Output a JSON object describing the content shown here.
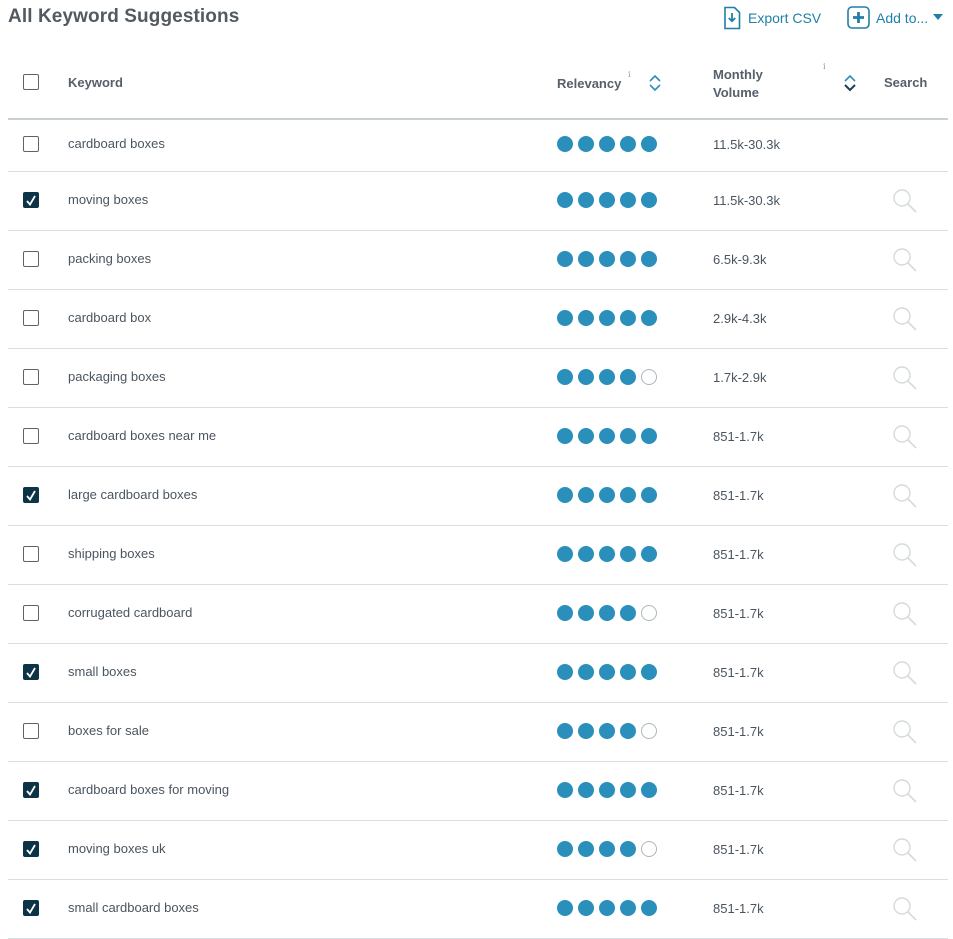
{
  "title": "All Keyword Suggestions",
  "actions": {
    "export_label": "Export CSV",
    "addto_label": "Add to..."
  },
  "columns": {
    "keyword": "Keyword",
    "relevancy": "Relevancy",
    "volume_line1": "Monthly",
    "volume_line2": "Volume",
    "search": "Search",
    "info_glyph": "i"
  },
  "rows": [
    {
      "keyword": "cardboard boxes",
      "checked": false,
      "relevancy": 5,
      "volume": "11.5k-30.3k",
      "search_icon": false
    },
    {
      "keyword": "moving boxes",
      "checked": true,
      "relevancy": 5,
      "volume": "11.5k-30.3k",
      "search_icon": true
    },
    {
      "keyword": "packing boxes",
      "checked": false,
      "relevancy": 5,
      "volume": "6.5k-9.3k",
      "search_icon": true
    },
    {
      "keyword": "cardboard box",
      "checked": false,
      "relevancy": 5,
      "volume": "2.9k-4.3k",
      "search_icon": true
    },
    {
      "keyword": "packaging boxes",
      "checked": false,
      "relevancy": 4,
      "volume": "1.7k-2.9k",
      "search_icon": true
    },
    {
      "keyword": "cardboard boxes near me",
      "checked": false,
      "relevancy": 5,
      "volume": "851-1.7k",
      "search_icon": true
    },
    {
      "keyword": "large cardboard boxes",
      "checked": true,
      "relevancy": 5,
      "volume": "851-1.7k",
      "search_icon": true
    },
    {
      "keyword": "shipping boxes",
      "checked": false,
      "relevancy": 5,
      "volume": "851-1.7k",
      "search_icon": true
    },
    {
      "keyword": "corrugated cardboard",
      "checked": false,
      "relevancy": 4,
      "volume": "851-1.7k",
      "search_icon": true
    },
    {
      "keyword": "small boxes",
      "checked": true,
      "relevancy": 5,
      "volume": "851-1.7k",
      "search_icon": true
    },
    {
      "keyword": "boxes for sale",
      "checked": false,
      "relevancy": 4,
      "volume": "851-1.7k",
      "search_icon": true
    },
    {
      "keyword": "cardboard boxes for moving",
      "checked": true,
      "relevancy": 5,
      "volume": "851-1.7k",
      "search_icon": true
    },
    {
      "keyword": "moving boxes uk",
      "checked": true,
      "relevancy": 4,
      "volume": "851-1.7k",
      "search_icon": true
    },
    {
      "keyword": "small cardboard boxes",
      "checked": true,
      "relevancy": 5,
      "volume": "851-1.7k",
      "search_icon": true
    }
  ],
  "colors": {
    "accent": "#2a8fba",
    "checked": "#0d3347",
    "link": "#1f7fa8"
  }
}
